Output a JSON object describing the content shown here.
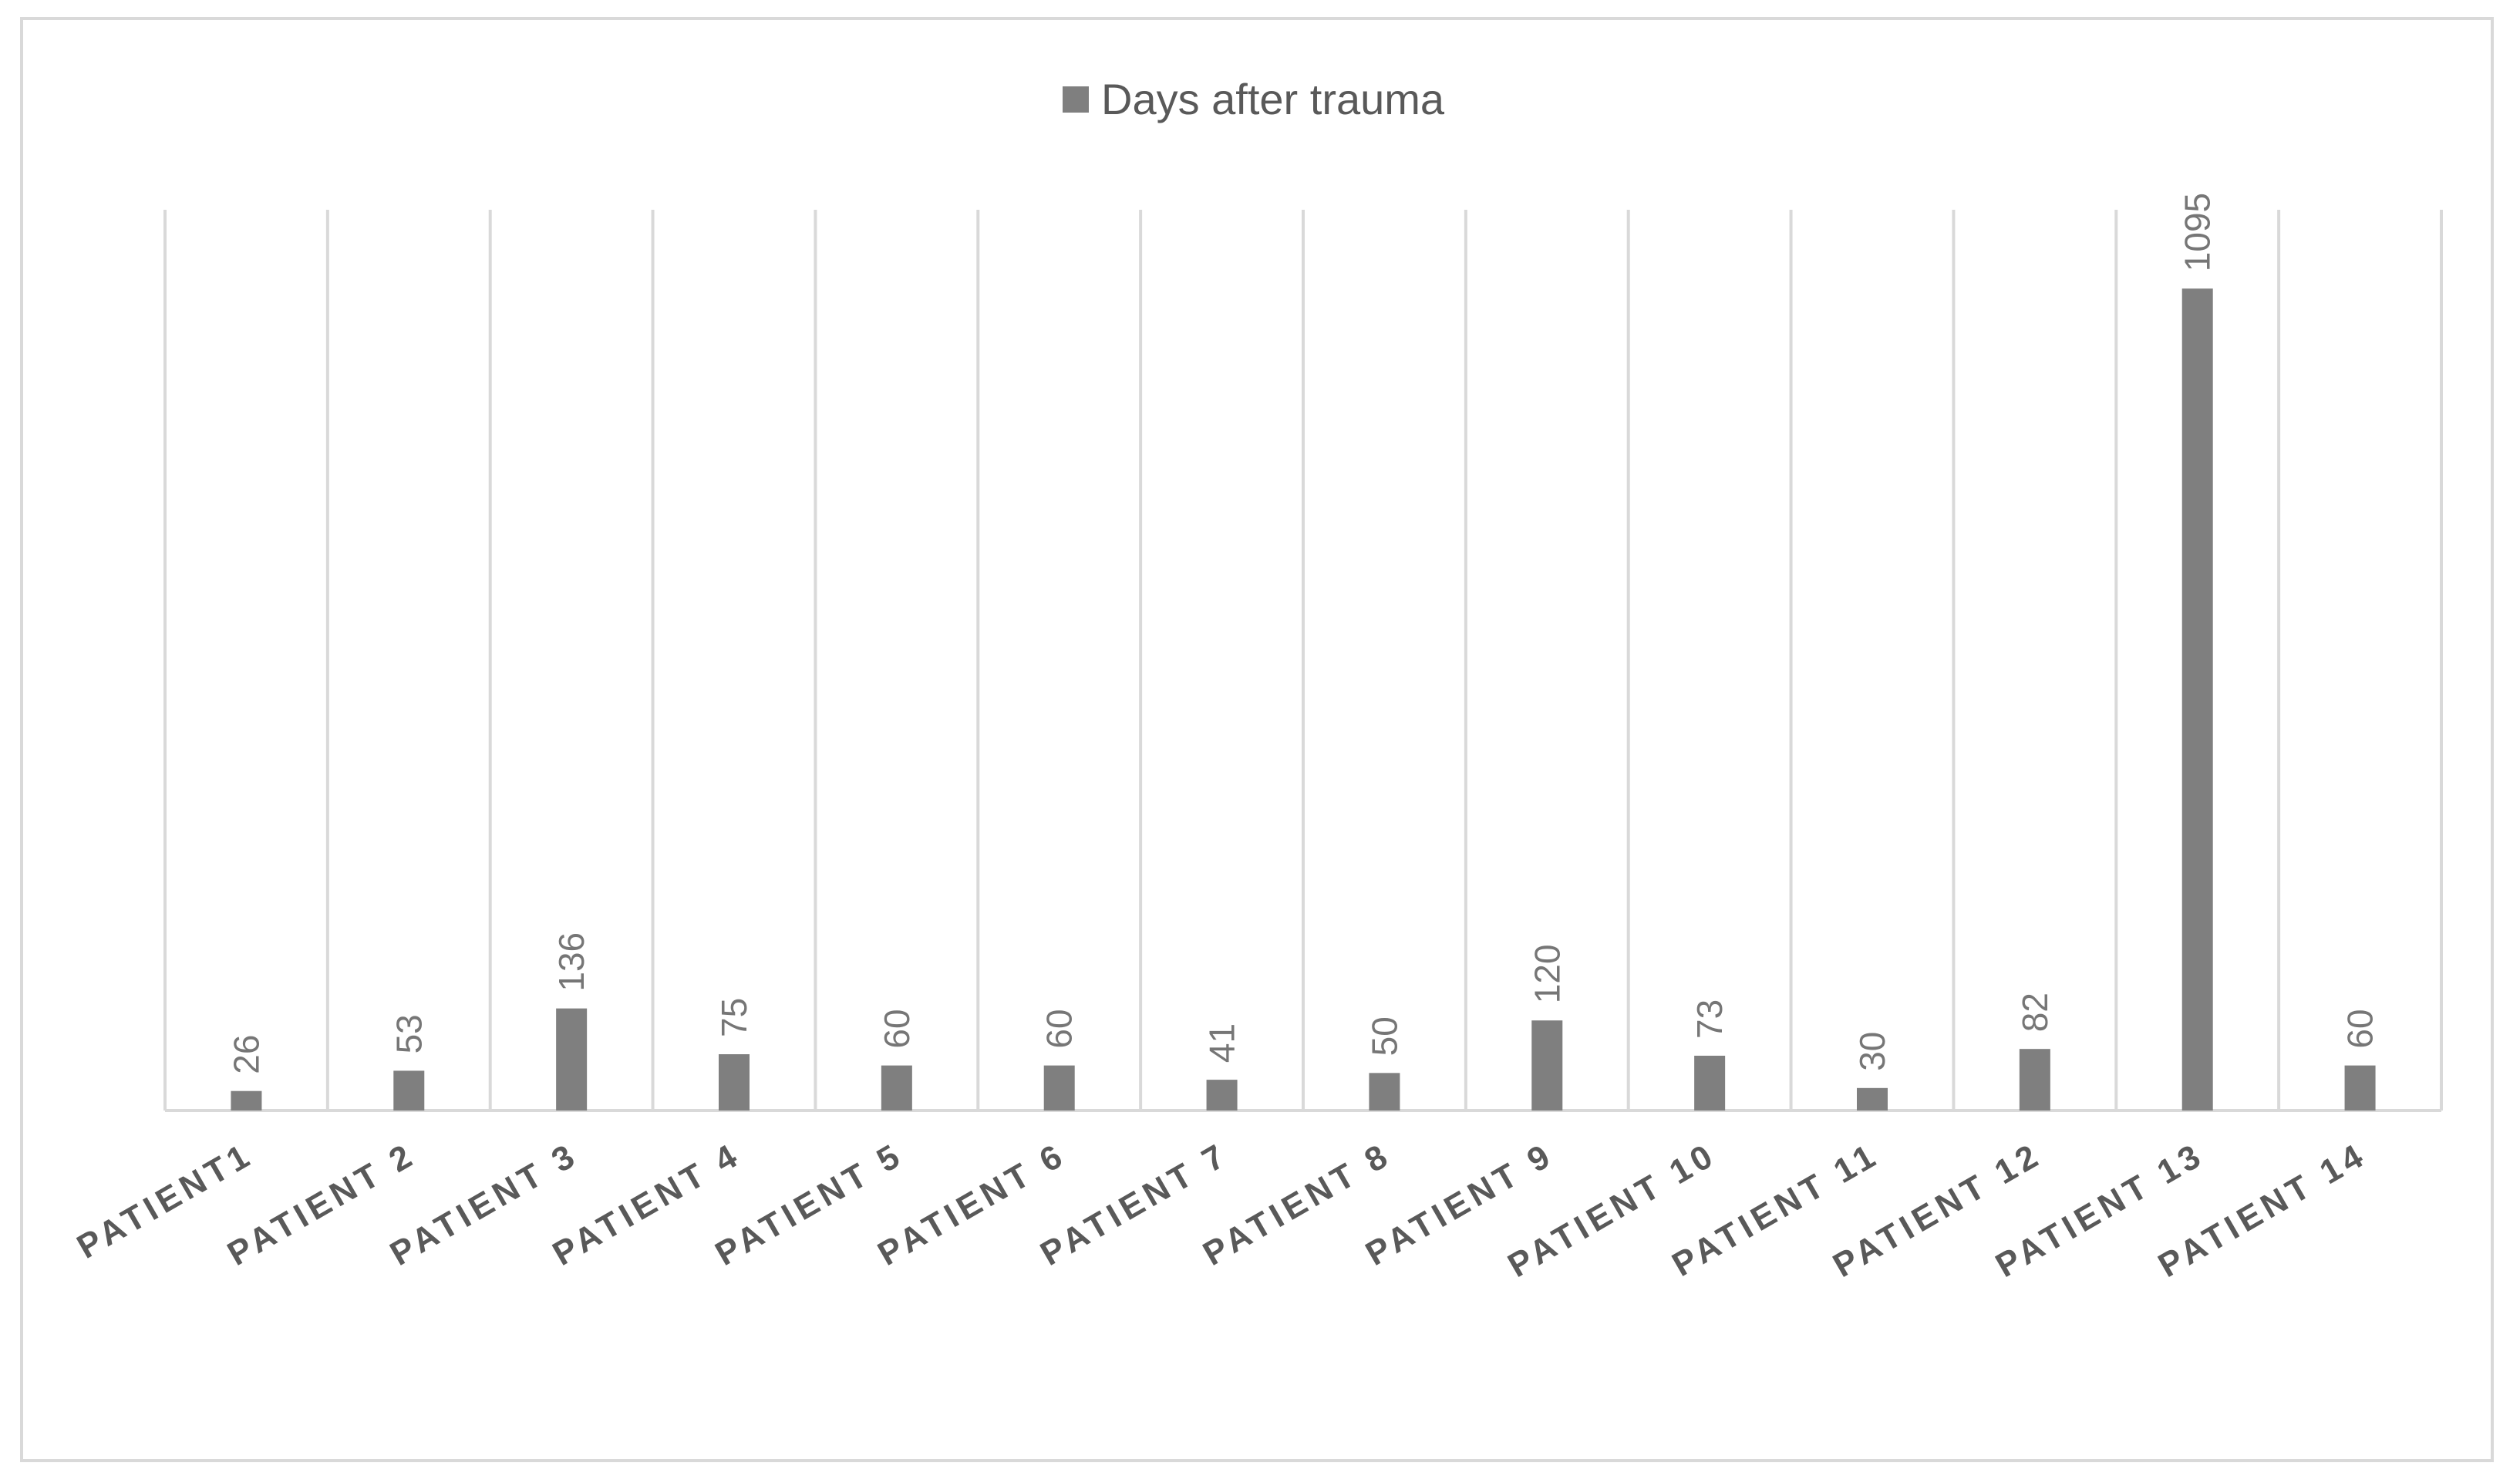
{
  "chart_data": {
    "type": "bar",
    "legend": {
      "position": "top",
      "entries": [
        "Days after trauma"
      ]
    },
    "categories": [
      "PATIENT1",
      "PATIENT 2",
      "PATIENT 3",
      "PATIENT 4",
      "PATIENT 5",
      "PATIENT 6",
      "PATIENT 7",
      "PATIENT 8",
      "PATIENT 9",
      "PATIENT 10",
      "PATIENT 11",
      "PATIENT 12",
      "PATIENT 13",
      "PATIENT 14"
    ],
    "series": [
      {
        "name": "Days after trauma",
        "values": [
          26,
          53,
          136,
          75,
          60,
          60,
          41,
          50,
          120,
          73,
          30,
          82,
          1095,
          60
        ]
      }
    ],
    "data_labels": [
      "26",
      "53",
      "136",
      "75",
      "60",
      "60",
      "41",
      "50",
      "120",
      "73",
      "30",
      "82",
      "1095",
      "60"
    ],
    "ylim": [
      0,
      1200
    ],
    "y_axis_visible": false,
    "gridlines": "vertical category separators",
    "colors": {
      "bar": "#7f7f7f",
      "grid": "#d9d9d9",
      "axis": "#d9d9d9",
      "text": "#595959"
    }
  }
}
